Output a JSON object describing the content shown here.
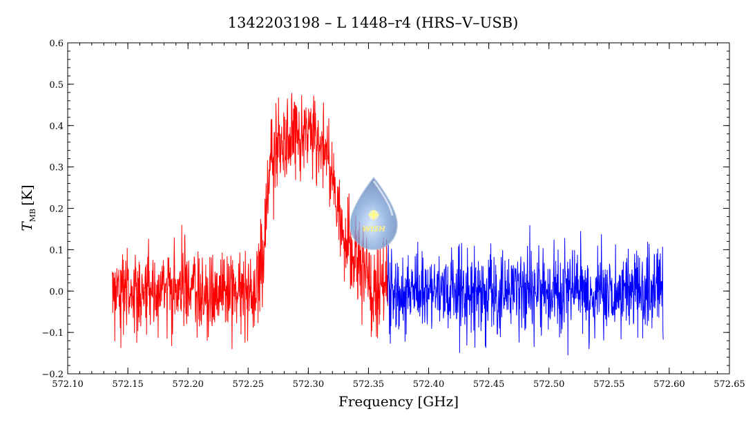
{
  "chart_data": {
    "type": "line",
    "title": "1342203198 – L 1448–r4 (HRS–V–USB)",
    "xlabel": "Frequency [GHz]",
    "ylabel_main": "T",
    "ylabel_sub": "MB",
    "ylabel_unit": "[K]",
    "xlim": [
      572.1,
      572.65
    ],
    "ylim": [
      -0.2,
      0.6
    ],
    "x_ticks": [
      "572.10",
      "572.15",
      "572.20",
      "572.25",
      "572.30",
      "572.35",
      "572.40",
      "572.45",
      "572.50",
      "572.55",
      "572.60",
      "572.65"
    ],
    "y_ticks": [
      "−0.2",
      "−0.1",
      "0.0",
      "0.1",
      "0.2",
      "0.3",
      "0.4",
      "0.5",
      "0.6"
    ],
    "x_tick_values": [
      572.1,
      572.15,
      572.2,
      572.25,
      572.3,
      572.35,
      572.4,
      572.45,
      572.5,
      572.55,
      572.6,
      572.65
    ],
    "y_tick_values": [
      -0.2,
      -0.1,
      0.0,
      0.1,
      0.2,
      0.3,
      0.4,
      0.5,
      0.6
    ],
    "grid": false,
    "series": [
      {
        "color": "#ff0000",
        "x_range": [
          572.137,
          572.366
        ],
        "noise_rms": 0.05,
        "profile": [
          [
            572.137,
            0.0
          ],
          [
            572.255,
            0.0
          ],
          [
            572.26,
            0.04
          ],
          [
            572.263,
            0.12
          ],
          [
            572.267,
            0.28
          ],
          [
            572.272,
            0.35
          ],
          [
            572.28,
            0.36
          ],
          [
            572.29,
            0.38
          ],
          [
            572.3,
            0.4
          ],
          [
            572.31,
            0.36
          ],
          [
            572.315,
            0.33
          ],
          [
            572.32,
            0.28
          ],
          [
            572.325,
            0.2
          ],
          [
            572.33,
            0.13
          ],
          [
            572.34,
            0.07
          ],
          [
            572.35,
            0.02
          ],
          [
            572.366,
            0.0
          ]
        ]
      },
      {
        "color": "#0000ff",
        "x_range": [
          572.366,
          572.595
        ],
        "noise_rms": 0.05,
        "profile": [
          [
            572.366,
            0.0
          ],
          [
            572.595,
            0.0
          ]
        ]
      }
    ],
    "logo": {
      "text": "WISH"
    }
  }
}
